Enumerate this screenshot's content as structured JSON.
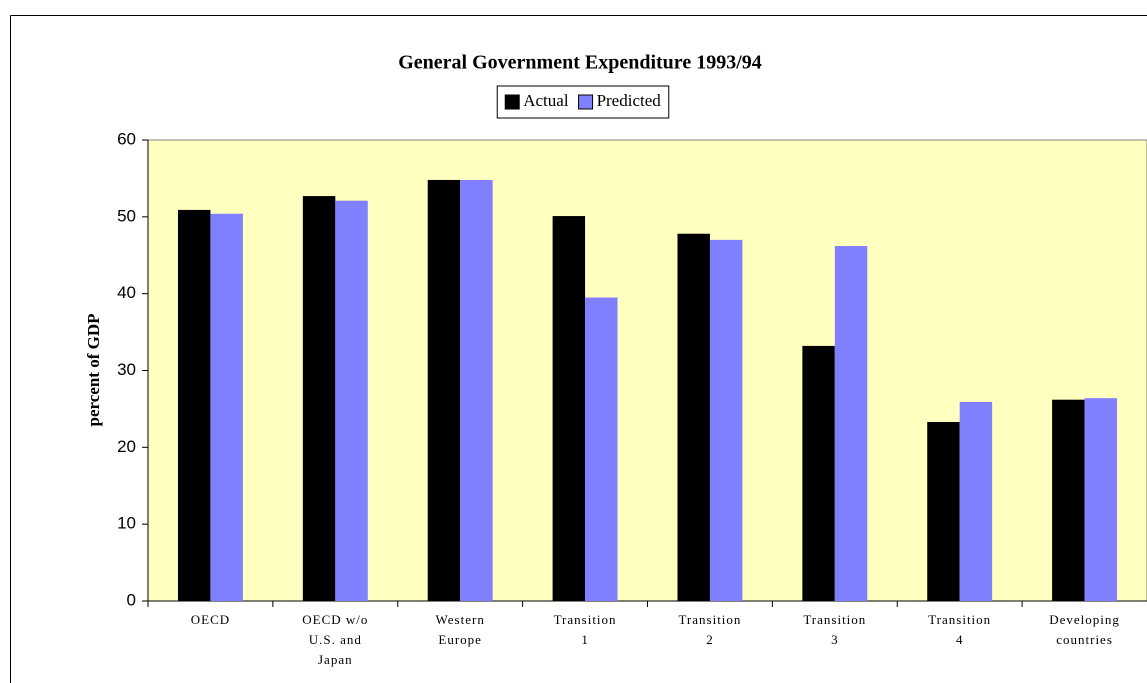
{
  "chart_data": {
    "type": "bar",
    "title": "General Government Expenditure 1993/94",
    "y_label": "percent of GDP",
    "categories": [
      [
        "OECD"
      ],
      [
        "OECD w/o",
        "U.S. and",
        "Japan"
      ],
      [
        "Western",
        "Europe"
      ],
      [
        "Transition",
        "1"
      ],
      [
        "Transition",
        "2"
      ],
      [
        "Transition",
        "3"
      ],
      [
        "Transition",
        "4"
      ],
      [
        "Developing",
        "countries"
      ]
    ],
    "series": [
      {
        "name": "Actual",
        "color": "#000000",
        "values": [
          50.9,
          52.7,
          54.8,
          50.1,
          47.8,
          33.2,
          23.3,
          26.2
        ]
      },
      {
        "name": "Predicted",
        "color": "#8080ff",
        "values": [
          50.4,
          52.1,
          54.8,
          39.5,
          47.0,
          46.2,
          25.9,
          26.4
        ]
      }
    ],
    "ylim": [
      0,
      60
    ],
    "yticks": [
      0,
      10,
      20,
      30,
      40,
      50,
      60
    ],
    "plot_background": "#ffffc0",
    "legend": "top"
  }
}
